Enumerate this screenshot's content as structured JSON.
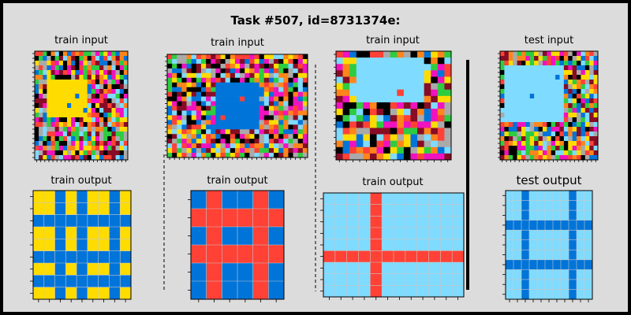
{
  "title": "Task #507, id=8731374e:",
  "labels": {
    "train_input": "train input",
    "train_output": "train output",
    "test_input": "test input",
    "test_output": "test output"
  },
  "colors": {
    "background": "#dcdcdc",
    "border": "#000000",
    "black": "#000000",
    "blue": "#0074d9",
    "red": "#ff4136",
    "green": "#2ecc40",
    "yellow": "#ffdc00",
    "gray": "#aaaaaa",
    "magenta": "#f012be",
    "orange": "#ff851b",
    "light_blue": "#7fdbff",
    "maroon": "#870c25",
    "grid_line": "#c8c8c8"
  },
  "pairs": [
    {
      "input_grid": {
        "rows": 23,
        "cols": 23,
        "background": "mixed-noise",
        "rectangle_color": "yellow",
        "marker_color": "blue"
      },
      "output_grid": {
        "rows": 9,
        "cols": 9,
        "fill": "yellow",
        "line_color": "blue",
        "line_rows": [
          2,
          5,
          7
        ],
        "line_cols": [
          2,
          4,
          7
        ]
      }
    },
    {
      "input_grid": {
        "rows": 22,
        "cols": 29,
        "background": "mixed-noise",
        "rectangle_color": "blue",
        "marker_color": "red"
      },
      "output_grid": {
        "rows": 6,
        "cols": 6,
        "fill": "blue",
        "line_color": "red",
        "line_rows": [
          1,
          3
        ],
        "line_cols": [
          1,
          4
        ]
      }
    },
    {
      "input_grid": {
        "rows": 17,
        "cols": 17,
        "background": "mixed-noise",
        "rectangle_color": "light_blue",
        "marker_color": "red"
      },
      "output_grid": {
        "rows": 9,
        "cols": 12,
        "fill": "light_blue",
        "line_color": "red",
        "line_rows": [
          5
        ],
        "line_cols": [
          4
        ]
      }
    }
  ],
  "test": {
    "input_grid": {
      "rows": 23,
      "cols": 23,
      "background": "mixed-noise",
      "rectangle_color": "light_blue",
      "marker_color": "blue"
    },
    "output_grid": {
      "rows": 11,
      "cols": 11,
      "fill": "light_blue",
      "line_color": "blue",
      "line_rows": [
        3,
        7
      ],
      "line_cols": [
        2,
        8
      ]
    }
  }
}
